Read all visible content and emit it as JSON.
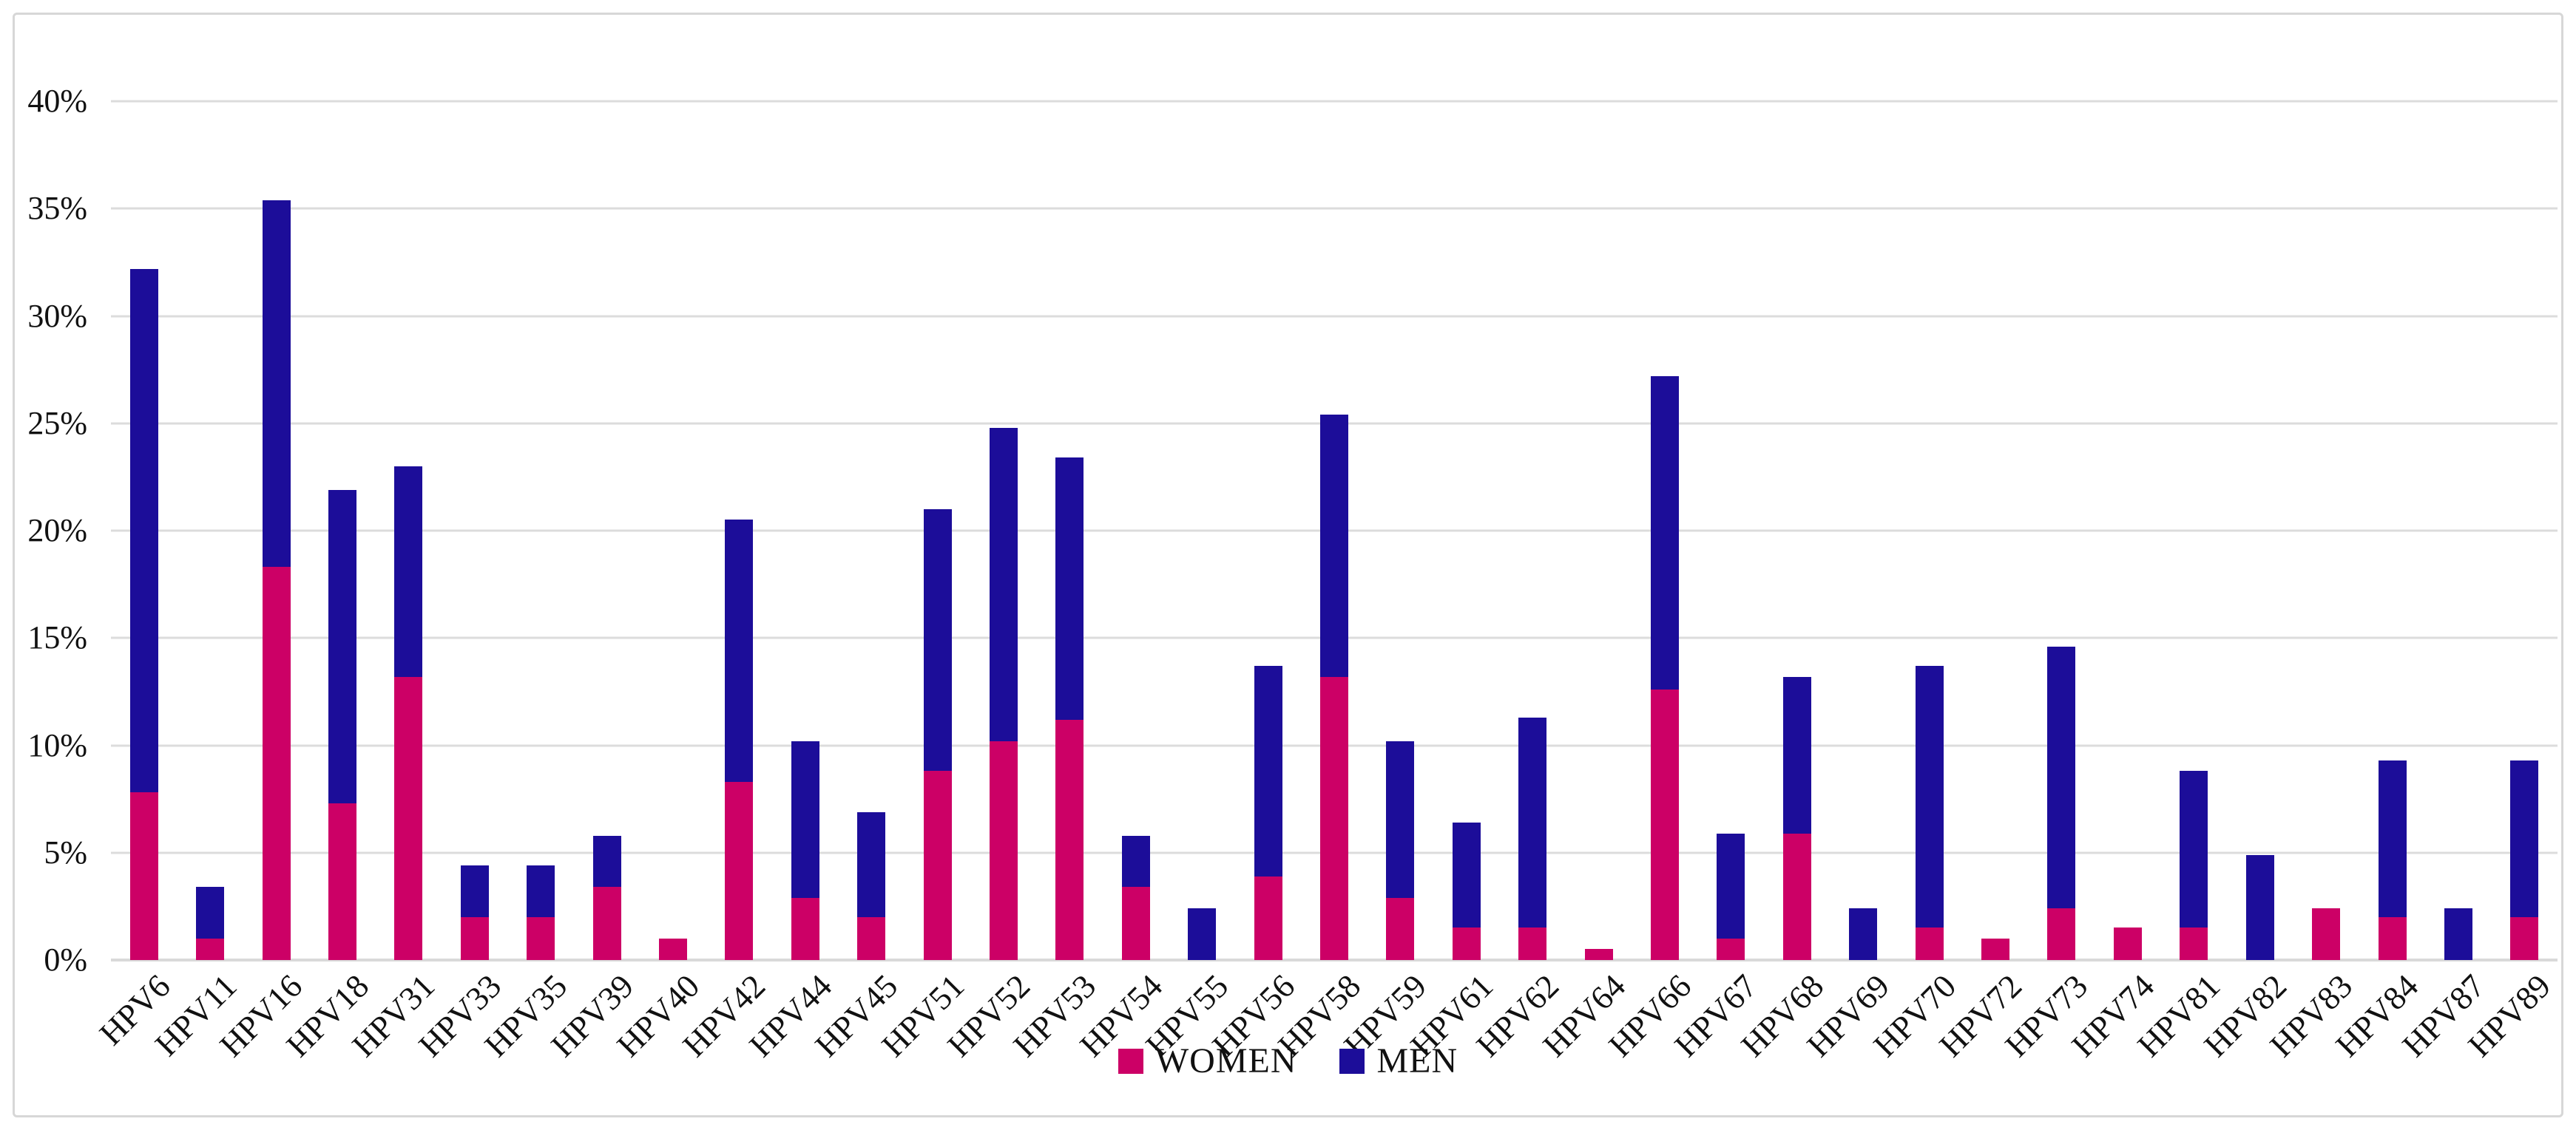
{
  "chart": {
    "background": "#ffffff",
    "frame_border_color": "#d7d7d7",
    "gridline_color": "#dcdcdc",
    "y_axis": {
      "min": 0,
      "max": 40,
      "step": 5,
      "ticks": [
        {
          "label": "0%",
          "value": 0
        },
        {
          "label": "5%",
          "value": 5
        },
        {
          "label": "10%",
          "value": 10
        },
        {
          "label": "15%",
          "value": 15
        },
        {
          "label": "20%",
          "value": 20
        },
        {
          "label": "25%",
          "value": 25
        },
        {
          "label": "30%",
          "value": 30
        },
        {
          "label": "35%",
          "value": 35
        },
        {
          "label": "40%",
          "value": 40
        }
      ]
    }
  },
  "chart_data": {
    "type": "bar",
    "stacked": true,
    "title": "",
    "xlabel": "",
    "ylabel": "",
    "ylim": [
      0,
      40
    ],
    "grid": true,
    "legend_position": "bottom",
    "categories": [
      "HPV6",
      "HPV11",
      "HPV16",
      "HPV18",
      "HPV31",
      "HPV33",
      "HPV35",
      "HPV39",
      "HPV40",
      "HPV42",
      "HPV44",
      "HPV45",
      "HPV51",
      "HPV52",
      "HPV53",
      "HPV54",
      "HPV55",
      "HPV56",
      "HPV58",
      "HPV59",
      "HPV61",
      "HPV62",
      "HPV64",
      "HPV66",
      "HPV67",
      "HPV68",
      "HPV69",
      "HPV70",
      "HPV72",
      "HPV73",
      "HPV74",
      "HPV81",
      "HPV82",
      "HPV83",
      "HPV84",
      "HPV87",
      "HPV89"
    ],
    "series": [
      {
        "name": "WOMEN",
        "color": "#cc0066",
        "values": [
          7.8,
          1.0,
          18.3,
          7.3,
          13.2,
          2.0,
          2.0,
          3.4,
          1.0,
          8.3,
          2.9,
          2.0,
          8.8,
          10.2,
          11.2,
          3.4,
          0,
          3.9,
          13.2,
          2.9,
          1.5,
          1.5,
          0.5,
          12.6,
          1.0,
          5.9,
          0,
          1.5,
          1.0,
          2.4,
          1.5,
          1.5,
          0,
          2.4,
          2.0,
          0,
          2.0
        ]
      },
      {
        "name": "MEN",
        "color": "#1c0d99",
        "values": [
          24.4,
          2.4,
          17.1,
          14.6,
          9.8,
          2.4,
          2.4,
          2.4,
          0,
          12.2,
          7.3,
          4.9,
          12.2,
          14.6,
          12.2,
          2.4,
          2.4,
          9.8,
          12.2,
          7.3,
          4.9,
          9.8,
          0,
          14.6,
          4.9,
          7.3,
          2.4,
          12.2,
          0,
          12.2,
          0,
          7.3,
          4.9,
          0,
          7.3,
          2.4,
          7.3
        ]
      }
    ]
  }
}
